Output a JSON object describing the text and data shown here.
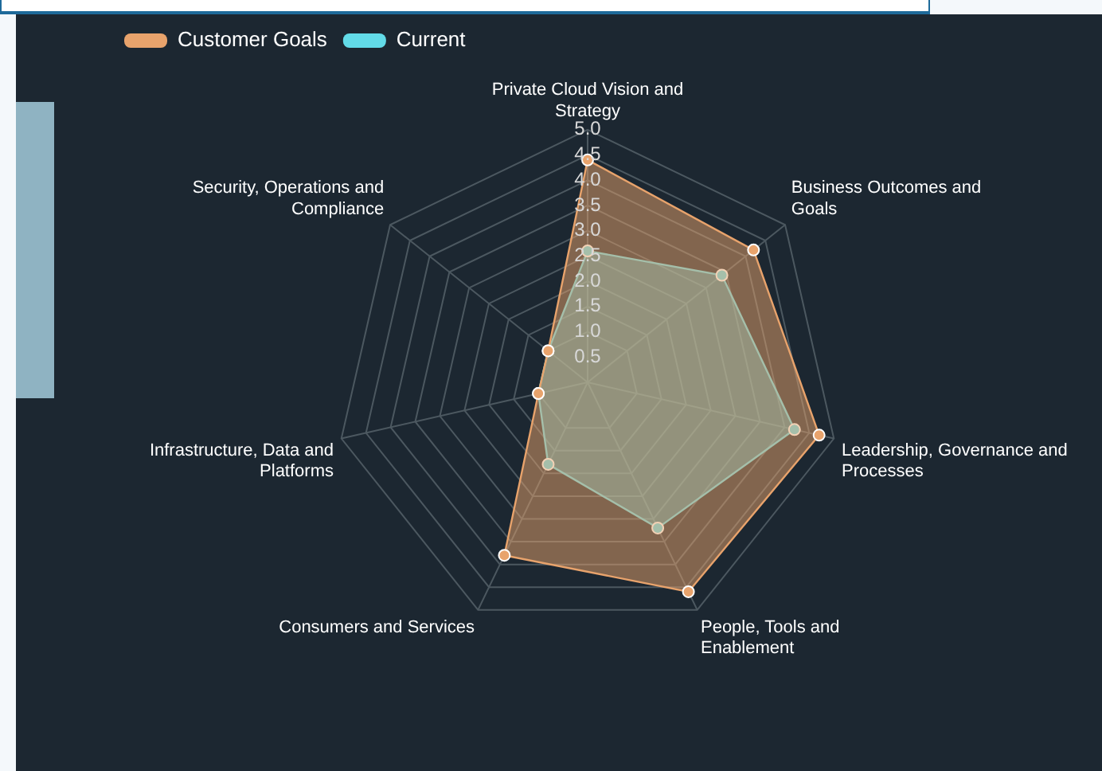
{
  "chart_data": {
    "type": "radar",
    "categories": [
      "Private Cloud Vision and Strategy",
      "Business Outcomes and Goals",
      "Leadership, Governance and Processes",
      "People, Tools and Enablement",
      "Consumers and Services",
      "Infrastructure, Data and Platforms",
      "Security, Operations and Compliance"
    ],
    "series": [
      {
        "name": "Customer Goals",
        "color": "#e8a36c",
        "values": [
          4.4,
          4.2,
          4.7,
          4.6,
          3.8,
          1.0,
          1.0
        ]
      },
      {
        "name": "Current",
        "color": "#62dbe8",
        "values": [
          2.6,
          3.4,
          4.2,
          3.2,
          1.8,
          1.0,
          1.0
        ]
      }
    ],
    "ylim": [
      0,
      5
    ],
    "yticks": [
      {
        "value": 0.5,
        "label": "0.5"
      },
      {
        "value": 1,
        "label": "1.0"
      },
      {
        "value": 1.5,
        "label": "1.5"
      },
      {
        "value": 2,
        "label": "2.0"
      },
      {
        "value": 2.5,
        "label": "2.5"
      },
      {
        "value": 3,
        "label": "3.0"
      },
      {
        "value": 3.5,
        "label": "3.5"
      },
      {
        "value": 4,
        "label": "4.0"
      },
      {
        "value": 4.5,
        "label": "4.5"
      },
      {
        "value": 5,
        "label": "5.0"
      }
    ],
    "grid": true,
    "legend": "top left",
    "marker": "circle"
  }
}
